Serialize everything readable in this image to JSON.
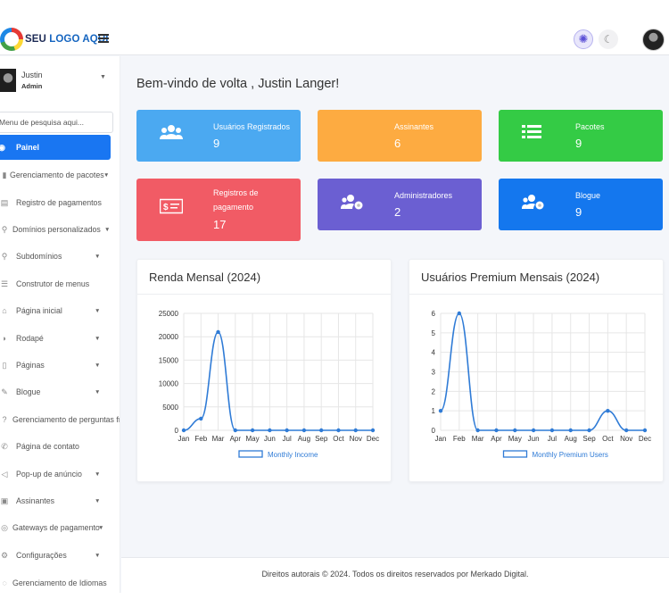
{
  "header": {
    "logo_text_a": "SEU",
    "logo_text_b": "LOGO AQUI",
    "light_icon": "sun-icon",
    "dark_icon": "moon-icon"
  },
  "sidebar": {
    "user_name": "Justin",
    "user_role": "Admin",
    "search_placeholder": "Menu de pesquisa aqui...",
    "items": [
      {
        "label": "Painel",
        "icon": "dashboard-icon",
        "caret": false
      },
      {
        "label": "Gerenciamento de pacotes",
        "icon": "package-icon",
        "caret": true
      },
      {
        "label": "Registro de pagamentos",
        "icon": "receipt-icon",
        "caret": false
      },
      {
        "label": "Domínios personalizados",
        "icon": "link-icon",
        "caret": true
      },
      {
        "label": "Subdomínios",
        "icon": "link-icon",
        "caret": true
      },
      {
        "label": "Construtor de menus",
        "icon": "bars-icon",
        "caret": false
      },
      {
        "label": "Página inicial",
        "icon": "home-icon",
        "caret": true
      },
      {
        "label": "Rodapé",
        "icon": "shoe-icon",
        "caret": true
      },
      {
        "label": "Páginas",
        "icon": "file-icon",
        "caret": true
      },
      {
        "label": "Blogue",
        "icon": "blog-icon",
        "caret": true
      },
      {
        "label": "Gerenciamento de perguntas fr",
        "icon": "question-icon",
        "caret": false
      },
      {
        "label": "Página de contato",
        "icon": "contact-icon",
        "caret": false
      },
      {
        "label": "Pop-up de anúncio",
        "icon": "megaphone-icon",
        "caret": true
      },
      {
        "label": "Assinantes",
        "icon": "subscribers-icon",
        "caret": true
      },
      {
        "label": "Gateways de pagamento",
        "icon": "gateway-icon",
        "caret": true
      },
      {
        "label": "Configurações",
        "icon": "gear-icon",
        "caret": true
      },
      {
        "label": "Gerenciamento de Idiomas",
        "icon": "language-icon",
        "caret": false
      }
    ]
  },
  "main": {
    "welcome": "Bem-vindo de volta , Justin Langer!",
    "stats": [
      {
        "label": "Usuários Registrados",
        "value": "9",
        "color": "#4ba9f1",
        "icon": "users-icon"
      },
      {
        "label": "Assinantes",
        "value": "6",
        "color": "#fdab41",
        "icon": "bell-icon"
      },
      {
        "label": "Pacotes",
        "value": "9",
        "color": "#34cb45",
        "icon": "list-icon"
      },
      {
        "label": "Registros de pagamento",
        "value": "17",
        "color": "#f15b65",
        "icon": "money-icon"
      },
      {
        "label": "Administradores",
        "value": "2",
        "color": "#6b5fd2",
        "icon": "users-cog-icon"
      },
      {
        "label": "Blogue",
        "value": "9",
        "color": "#1477ee",
        "icon": "users-cog-icon"
      }
    ]
  },
  "chart_data": [
    {
      "type": "line",
      "title": "Renda Mensal (2024)",
      "categories": [
        "Jan",
        "Feb",
        "Mar",
        "Apr",
        "May",
        "Jun",
        "Jul",
        "Aug",
        "Sep",
        "Oct",
        "Nov",
        "Dec"
      ],
      "series": [
        {
          "name": "Monthly Income",
          "values": [
            0,
            2500,
            21000,
            0,
            0,
            0,
            0,
            0,
            0,
            0,
            0,
            0
          ]
        }
      ],
      "ylim": [
        0,
        25000
      ],
      "yticks": [
        0,
        5000,
        10000,
        15000,
        20000,
        25000
      ],
      "grid": true,
      "legend": "bottom",
      "color": "#2f7bd6"
    },
    {
      "type": "line",
      "title": "Usuários Premium Mensais (2024)",
      "categories": [
        "Jan",
        "Feb",
        "Mar",
        "Apr",
        "May",
        "Jun",
        "Jul",
        "Aug",
        "Sep",
        "Oct",
        "Nov",
        "Dec"
      ],
      "series": [
        {
          "name": "Monthly Premium Users",
          "values": [
            1,
            6,
            0,
            0,
            0,
            0,
            0,
            0,
            0,
            1,
            0,
            0
          ]
        }
      ],
      "ylim": [
        0,
        6
      ],
      "yticks": [
        0,
        1,
        2,
        3,
        4,
        5,
        6
      ],
      "grid": true,
      "legend": "bottom",
      "color": "#2f7bd6"
    }
  ],
  "footer": {
    "text": "Direitos autorais © 2024. Todos os direitos reservados por Merkado Digital."
  }
}
